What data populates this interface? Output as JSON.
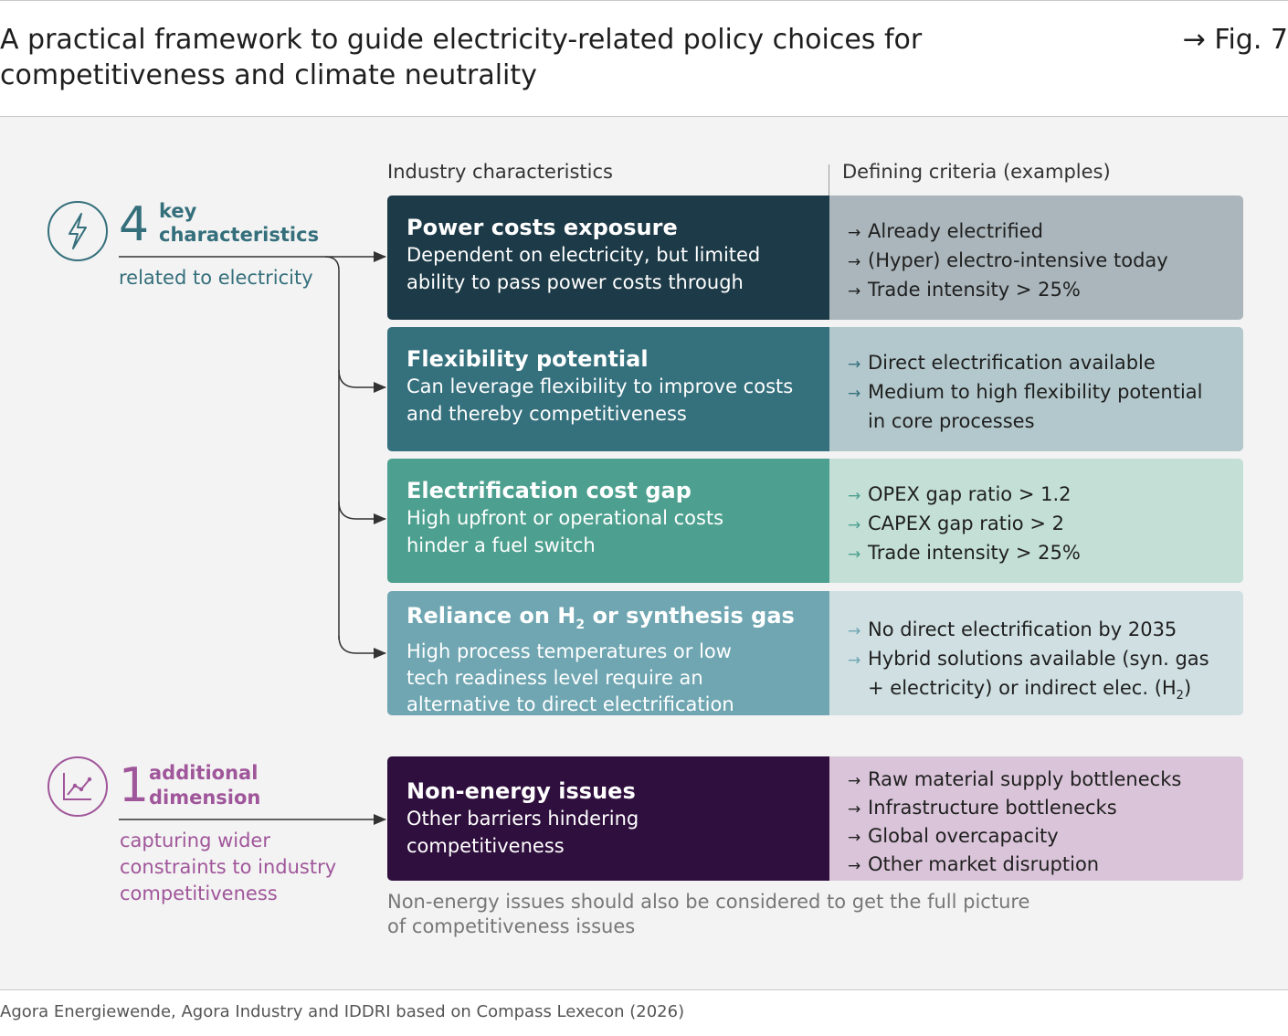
{
  "header": {
    "title_line1": "A practical framework to guide electricity-related policy choices for",
    "title_line2": "competitiveness and climate neutrality",
    "fig_ref": "→ Fig. 7"
  },
  "columns": {
    "left": "Industry characteristics",
    "right": "Defining criteria (examples)"
  },
  "group_key": {
    "number": "4",
    "label_line1": "key",
    "label_line2": "characteristics",
    "sublabel": "related to electricity",
    "icon": "lightning-icon",
    "color": "#346f7b"
  },
  "group_additional": {
    "number": "1",
    "label_line1": "additional",
    "label_line2": "dimension",
    "sublabel_lines": [
      "capturing wider",
      "constraints to industry",
      "competitiveness"
    ],
    "icon": "line-chart-icon",
    "color": "#a0569a"
  },
  "rows": [
    {
      "title": "Power costs exposure",
      "desc_lines": [
        "Dependent on electricity, but limited",
        "ability to pass power costs through"
      ],
      "criteria": [
        "Already electrified",
        "(Hyper) electro-intensive today",
        "Trade intensity > 25%"
      ],
      "left_color": "#1c3a47",
      "right_color": "#aab6bb"
    },
    {
      "title": "Flexibility potential",
      "desc_lines": [
        "Can leverage flexibility to improve costs",
        "and thereby competitiveness"
      ],
      "criteria": [
        "Direct electrification available",
        "Medium to high flexibility potential"
      ],
      "criteria_cont": "in core processes",
      "left_color": "#35707d",
      "right_color": "#b3c8cc"
    },
    {
      "title": "Electrification cost gap",
      "desc_lines": [
        "High upfront or operational costs",
        "hinder a fuel switch"
      ],
      "criteria": [
        "OPEX gap ratio > 1.2",
        "CAPEX gap ratio > 2",
        "Trade intensity > 25%"
      ],
      "left_color": "#4da08f",
      "right_color": "#c3dfd6"
    },
    {
      "title_pre": "Reliance on H",
      "title_sub": "2",
      "title_post": " or synthesis gas",
      "desc_lines": [
        "High process temperatures or low",
        "tech readiness level require an",
        "alternative to direct electrification"
      ],
      "criteria": [
        "No direct electrification by 2035",
        "Hybrid solutions available (syn. gas"
      ],
      "criteria_cont_pre": "+ electricity) or indirect elec. (H",
      "criteria_cont_sub": "2",
      "criteria_cont_post": ")",
      "left_color": "#6fa6b2",
      "right_color": "#cfdfe2"
    },
    {
      "title": "Non-energy issues",
      "desc_lines": [
        "Other barriers hindering",
        "competitiveness"
      ],
      "criteria": [
        "Raw material supply bottlenecks",
        "Infrastructure bottlenecks",
        "Global overcapacity",
        "Other market disruption"
      ],
      "left_color": "#2f0f3d",
      "right_color": "#dac4d9"
    }
  ],
  "note_lines": [
    "Non-energy issues should also be considered to get the full picture",
    "of competitiveness issues"
  ],
  "source": "Agora Energiewende, Agora Industry and IDDRI based on Compass Lexecon (2026)"
}
